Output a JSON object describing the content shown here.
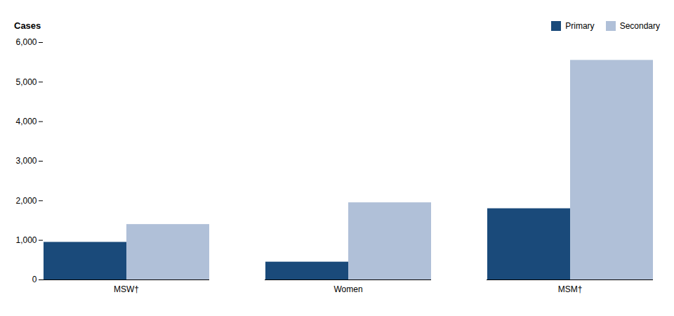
{
  "chart_data": {
    "type": "bar",
    "categories": [
      "MSW†",
      "Women",
      "MSM†"
    ],
    "series": [
      {
        "name": "Primary",
        "color": "#1a4a7a",
        "values": [
          950,
          450,
          1800
        ]
      },
      {
        "name": "Secondary",
        "color": "#b0c0d8",
        "values": [
          1400,
          1950,
          5550
        ]
      }
    ],
    "ylabel": "Cases",
    "ylim": [
      0,
      6000
    ],
    "yticks": [
      0,
      {
        "value": 1000,
        "label": "1,000"
      },
      {
        "value": 2000,
        "label": "2,000"
      },
      {
        "value": 3000,
        "label": "3,000"
      },
      {
        "value": 4000,
        "label": "4,000"
      },
      {
        "value": 5000,
        "label": "5,000"
      },
      {
        "value": 6000,
        "label": "6,000"
      }
    ],
    "grid": false,
    "legend": "upper right"
  }
}
